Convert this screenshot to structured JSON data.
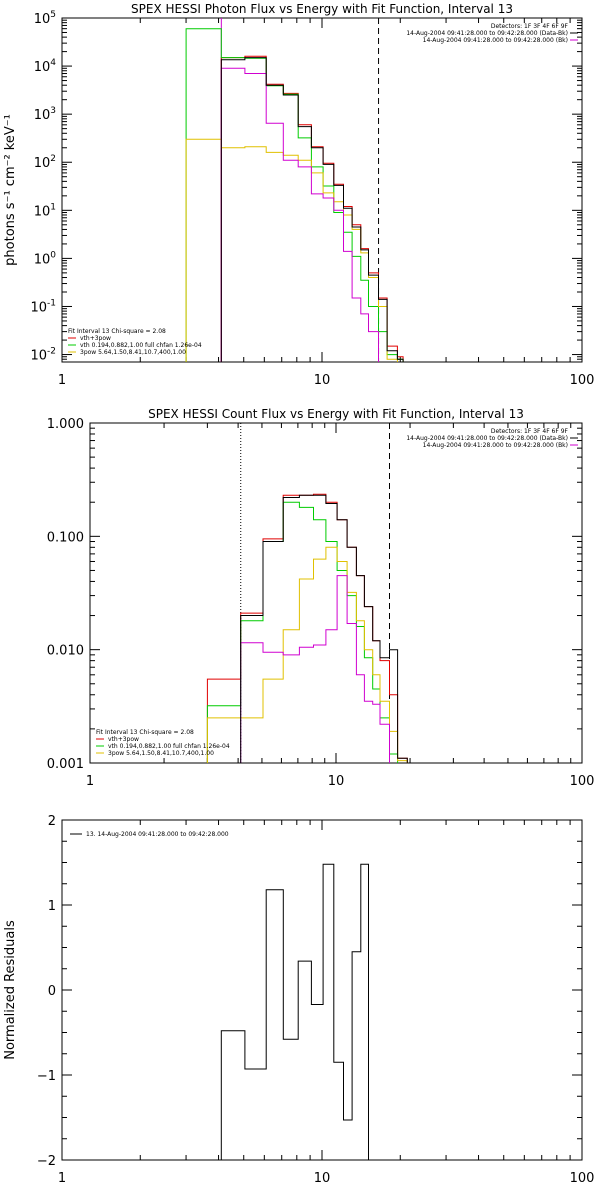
{
  "colors": {
    "background": "#ffffff",
    "axes": "#000000",
    "data": "#000000",
    "vth_3pow": "#e00000",
    "vth": "#00cc00",
    "3pow": "#e0c000",
    "bk": "#d000d0"
  },
  "chart_data": [
    {
      "type": "line",
      "title": "SPEX HESSI Photon Flux vs Energy with Fit Function, Interval 13",
      "xlabel": "",
      "ylabel": "photons s⁻¹ cm⁻² keV⁻¹",
      "xscale": "log",
      "yscale": "log",
      "xlim": [
        1,
        100
      ],
      "ylim": [
        0.007,
        100000
      ],
      "x_ticks": [
        {
          "v": 1,
          "label": "1"
        },
        {
          "v": 10,
          "label": "10"
        },
        {
          "v": 100,
          "label": "100"
        }
      ],
      "y_ticks": [
        {
          "v": 0.01,
          "base": "10",
          "exp": "-2"
        },
        {
          "v": 0.1,
          "base": "10",
          "exp": "-1"
        },
        {
          "v": 1,
          "base": "10",
          "exp": "0"
        },
        {
          "v": 10,
          "base": "10",
          "exp": "1"
        },
        {
          "v": 100,
          "base": "10",
          "exp": "2"
        },
        {
          "v": 1000,
          "base": "10",
          "exp": "3"
        },
        {
          "v": 10000,
          "base": "10",
          "exp": "4"
        },
        {
          "v": 100000,
          "base": "10",
          "exp": "5"
        }
      ],
      "vlines": [
        {
          "x": 4.1,
          "style": "solid",
          "color": "#d000d0"
        },
        {
          "x": 16.5,
          "style": "dashed",
          "color": "#000000"
        }
      ],
      "legend_top_right": [
        {
          "text": "Detectors: 1F 3F 4F 6F 9F",
          "color": "#000000"
        },
        {
          "text": "14-Aug-2004 09:41:28.000 to 09:42:28.000 (Data-Bk)",
          "color": "#000000"
        },
        {
          "text": "14-Aug-2004 09:41:28.000 to 09:42:28.000 (Bk)",
          "color": "#d000d0"
        }
      ],
      "legend_bottom_left": [
        {
          "text": "Fit Interval 13   Chi-square = 2.08",
          "color": "#000000"
        },
        {
          "text": "vth+3pow",
          "color": "#e00000"
        },
        {
          "text": "vth 0.194,0.882,1.00  full chfan 1.26e-04",
          "color": "#00cc00"
        },
        {
          "text": "3pow 5.64,1.50,8.41,10.7,400,1.00",
          "color": "#e0c000"
        }
      ],
      "edges": [
        3,
        4.1,
        5.05,
        6.1,
        7.1,
        8.1,
        9.1,
        10.1,
        11.1,
        12.1,
        13.05,
        14.1,
        15.1,
        16.5,
        17.8,
        19.5,
        20.5
      ],
      "series": [
        {
          "name": "vth+3pow",
          "color": "#e00000",
          "values": [
            null,
            15000,
            16000,
            4200,
            2700,
            600,
            210,
            95,
            35,
            12,
            5,
            1.6,
            0.5,
            0.15,
            0.015,
            0.009
          ]
        },
        {
          "name": "vth",
          "color": "#00cc00",
          "values": [
            60000,
            15000,
            14500,
            3900,
            2600,
            320,
            80,
            32,
            9,
            3.5,
            1.1,
            0.35,
            0.1,
            0.03,
            0.01,
            0.008
          ]
        },
        {
          "name": "3pow",
          "color": "#e0c000",
          "values": [
            300,
            200,
            210,
            160,
            140,
            110,
            60,
            23,
            15,
            8,
            4,
            1.3,
            0.4,
            0.1,
            0.008,
            null
          ]
        },
        {
          "name": "bk",
          "color": "#d000d0",
          "values": [
            null,
            9000,
            7000,
            650,
            110,
            80,
            22,
            18,
            10,
            1.4,
            0.15,
            0.07,
            0.03,
            null,
            null,
            null
          ]
        },
        {
          "name": "data",
          "color": "#000000",
          "values": [
            null,
            13500,
            15000,
            4000,
            2500,
            550,
            200,
            90,
            33,
            11,
            4.5,
            1.5,
            0.45,
            0.14,
            0.012,
            0.008
          ]
        }
      ]
    },
    {
      "type": "line",
      "title": "SPEX HESSI Count Flux vs Energy with Fit Function, Interval 13",
      "xlabel": "",
      "ylabel": "",
      "xscale": "log",
      "yscale": "log",
      "xlim": [
        1,
        100
      ],
      "ylim": [
        0.001,
        1
      ],
      "x_ticks": [
        {
          "v": 1,
          "label": "1"
        },
        {
          "v": 10,
          "label": "10"
        },
        {
          "v": 100,
          "label": "100"
        }
      ],
      "y_ticks": [
        {
          "v": 0.001,
          "label": "0.001"
        },
        {
          "v": 0.01,
          "label": "0.010"
        },
        {
          "v": 0.1,
          "label": "0.100"
        },
        {
          "v": 1,
          "label": "1.000"
        }
      ],
      "vlines": [
        {
          "x": 4.1,
          "style": "dotted",
          "color": "#000000"
        },
        {
          "x": 16.5,
          "style": "dashed",
          "color": "#000000"
        }
      ],
      "legend_top_right": [
        {
          "text": "Detectors: 1F 3F 4F 6F 9F",
          "color": "#000000"
        },
        {
          "text": "14-Aug-2004 09:41:28.000 to 09:42:28.000 (Data-Bk)",
          "color": "#000000"
        },
        {
          "text": "14-Aug-2004 09:41:28.000 to 09:42:28.000 (Bk)",
          "color": "#d000d0"
        }
      ],
      "legend_bottom_left": [
        {
          "text": "Fit Interval 13   Chi-square = 2.08",
          "color": "#000000"
        },
        {
          "text": "vth+3pow",
          "color": "#e00000"
        },
        {
          "text": "vth 0.194,0.882,1.00  full chfan 1.26e-04",
          "color": "#00cc00"
        },
        {
          "text": "3pow 5.64,1.50,8.41,10.7,400,1.00",
          "color": "#e0c000"
        }
      ],
      "edges": [
        3,
        4.1,
        5.05,
        6.1,
        7.1,
        8.1,
        9.1,
        10.1,
        11.1,
        12.1,
        13.05,
        14.1,
        15.1,
        16.5,
        17.8,
        19.5,
        20.5
      ],
      "series": [
        {
          "name": "vth+3pow",
          "color": "#e00000",
          "values": [
            0.0055,
            0.021,
            0.095,
            0.23,
            0.23,
            0.235,
            0.2,
            0.14,
            0.08,
            0.045,
            0.024,
            0.012,
            0.008,
            0.004,
            0.0011,
            null
          ]
        },
        {
          "name": "vth",
          "color": "#00cc00",
          "values": [
            0.0032,
            0.018,
            0.09,
            0.2,
            0.18,
            0.14,
            0.09,
            0.05,
            0.03,
            0.016,
            0.0085,
            0.0045,
            0.0025,
            0.0012,
            null,
            null
          ]
        },
        {
          "name": "3pow",
          "color": "#e0c000",
          "values": [
            0.0025,
            0.0025,
            0.0055,
            0.015,
            0.042,
            0.063,
            0.08,
            0.06,
            0.032,
            0.018,
            0.01,
            0.006,
            0.0035,
            0.0019,
            0.00105,
            null
          ]
        },
        {
          "name": "bk",
          "color": "#d000d0",
          "values": [
            null,
            0.0115,
            0.0095,
            0.009,
            0.0105,
            0.011,
            0.015,
            0.045,
            0.017,
            0.006,
            0.0035,
            0.0033,
            0.0022,
            null,
            null,
            null
          ]
        },
        {
          "name": "data",
          "color": "#000000",
          "values": [
            null,
            0.02,
            0.09,
            0.22,
            0.23,
            0.23,
            0.195,
            0.14,
            0.08,
            0.045,
            0.024,
            0.012,
            0.0085,
            0.01,
            0.0011,
            null
          ]
        }
      ]
    },
    {
      "type": "line",
      "title": "",
      "xlabel": "",
      "ylabel": "Normalized Residuals",
      "xscale": "log",
      "yscale": "linear",
      "xlim": [
        1,
        100
      ],
      "ylim": [
        -2,
        2
      ],
      "x_ticks": [
        {
          "v": 1,
          "label": "1"
        },
        {
          "v": 10,
          "label": "10"
        },
        {
          "v": 100,
          "label": "100"
        }
      ],
      "y_ticks": [
        {
          "v": -2,
          "label": "−2"
        },
        {
          "v": -1,
          "label": "−1"
        },
        {
          "v": 0,
          "label": "0"
        },
        {
          "v": 1,
          "label": "1"
        },
        {
          "v": 2,
          "label": "2"
        }
      ],
      "vlines": [],
      "legend_top_left": [
        {
          "text": "13. 14-Aug-2004 09:41:28.000 to 09:42:28.000",
          "color": "#000000"
        }
      ],
      "edges": [
        4.1,
        5.05,
        6.1,
        7.1,
        8.1,
        9.1,
        10.1,
        11.1,
        12.1,
        13.05,
        14.1,
        15.1,
        16.5
      ],
      "series": [
        {
          "name": "residuals",
          "color": "#000000",
          "values": [
            -0.48,
            -0.93,
            1.18,
            -0.58,
            0.34,
            -0.17,
            1.48,
            -0.85,
            -1.53,
            0.45,
            1.48,
            null
          ]
        }
      ]
    }
  ]
}
